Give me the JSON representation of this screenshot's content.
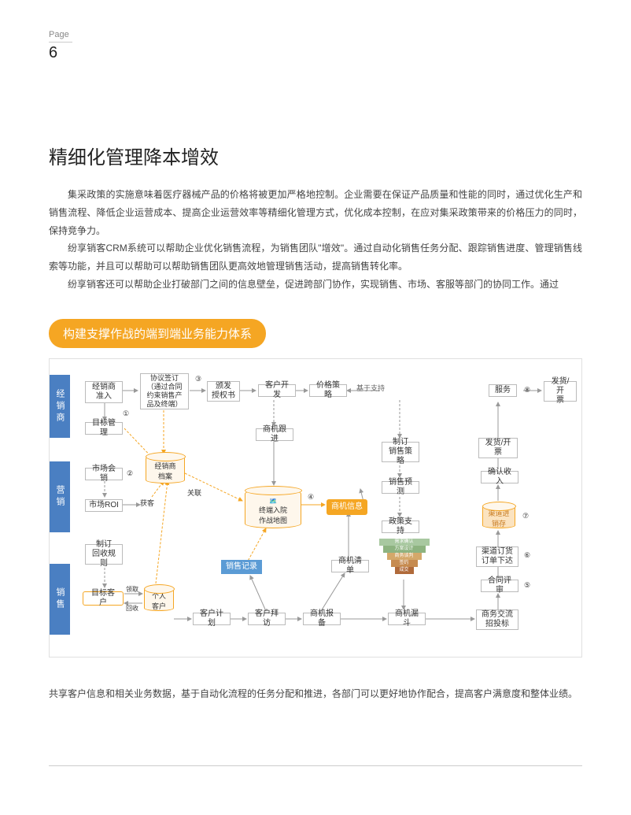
{
  "page": {
    "label": "Page",
    "number": "6"
  },
  "title": "精细化管理降本增效",
  "paragraphs": {
    "p1": "集采政策的实施意味着医疗器械产品的价格将被更加严格地控制。企业需要在保证产品质量和性能的同时，通过优化生产和销售流程、降低企业运营成本、提高企业运营效率等精细化管理方式，优化成本控制，在应对集采政策带来的价格压力的同时，保持竞争力。",
    "p2": "纷享销客CRM系统可以帮助企业优化销售流程，为销售团队\"增效\"。通过自动化销售任务分配、跟踪销售进度、管理销售线索等功能，并且可以帮助可以帮助销售团队更高效地管理销售活动，提高销售转化率。",
    "p3": "纷享销客还可以帮助企业打破部门之间的信息壁垒，促进跨部门协作，实现销售、市场、客服等部门的协同工作。通过",
    "p4": "共享客户信息和相关业务数据，基于自动化流程的任务分配和推进，各部门可以更好地协作配合，提高客户满意度和整体业绩。"
  },
  "banner": "构建支撑作战的端到端业务能力体系",
  "diagram": {
    "lanes": {
      "l1": "经销商",
      "l2": "营销",
      "l3": "销售"
    },
    "nodes": {
      "n_dealer_entry": "经销商\n准入",
      "n_contract": "协议签订\n（通过合同\n约束销售产\n品及终端）",
      "n_target_mgmt": "目标管理",
      "n_dealer_profile": "经销商\n档案",
      "n_market_event": "市场会销",
      "n_market_roi": "市场ROI",
      "n_acquire": "获客",
      "n_link": "关联",
      "n_recycle_rule": "制订\n回收规则",
      "n_target_customer": "目标客户",
      "n_personal_customer": "个人\n客户",
      "n_collect": "领取",
      "n_return": "回收",
      "n_auth": "颁发\n授权书",
      "n_customer_dev": "客户开发",
      "n_price_strategy": "价格策略",
      "n_support_based": "基于支持",
      "n_oppty_follow": "商机跟进",
      "n_sales_strategy": "制订\n销售策略",
      "n_sales_forecast": "销售预测",
      "n_policy_support": "政策支持",
      "n_oppty_info": "商机信息",
      "n_sales_record": "销售记录",
      "n_oppty_list": "商机清单",
      "n_customer_plan": "客户计划",
      "n_customer_visit": "客户拜访",
      "n_oppty_report": "商机报备",
      "n_oppty_funnel": "商机漏斗",
      "n_biz_exchange": "商务交流\n招投标",
      "n_contract_review": "合同评审",
      "n_channel_order": "渠道订货\n订单下达",
      "n_channel_stock": "渠道进\n销存",
      "n_confirm_revenue": "确认收入",
      "n_ship_invoice": "发货/开\n票",
      "n_service": "服务",
      "n_hospital_map": "终端入院\n作战地图"
    },
    "circles": {
      "c1": "①",
      "c2": "②",
      "c3": "③",
      "c4": "④",
      "c5": "⑤",
      "c6": "⑥",
      "c7": "⑦",
      "c8": "⑧"
    },
    "funnel_layers": [
      "需求确认",
      "方案设计",
      "商务谈判",
      "签约",
      "成交"
    ],
    "colors": {
      "lane": "#4a7fc2",
      "orange": "#f5a623",
      "blue_tag": "#5b9bd5",
      "gray_border": "#bbbbbb",
      "arrow_gray": "#999999",
      "arrow_orange": "#f5a623",
      "funnel": [
        "#a8c8a0",
        "#8db380",
        "#d4a86a",
        "#c68b50",
        "#b06a3a"
      ]
    }
  }
}
